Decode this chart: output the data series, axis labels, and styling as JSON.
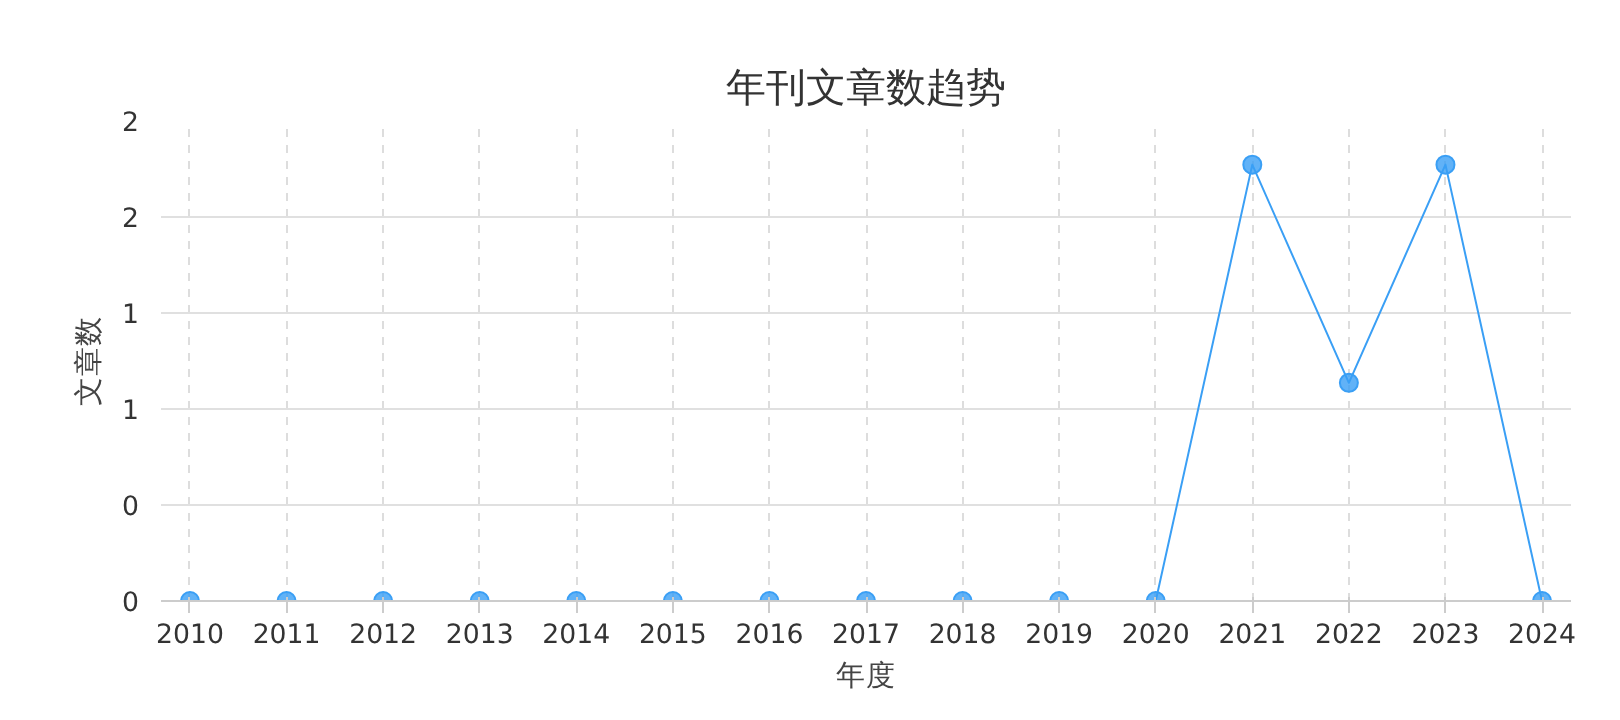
{
  "chart_data": {
    "type": "line",
    "title": "年刊文章数趋势",
    "xlabel": "年度",
    "ylabel": "文章数",
    "x": [
      2010,
      2011,
      2012,
      2013,
      2014,
      2015,
      2016,
      2017,
      2018,
      2019,
      2020,
      2021,
      2022,
      2023,
      2024
    ],
    "series": [
      {
        "color": "#3a9ff5",
        "values": [
          0,
          0,
          0,
          0,
          0,
          0,
          0,
          0,
          0,
          0,
          0,
          2,
          1,
          2,
          0
        ]
      }
    ],
    "xlim": [
      2009.7,
      2024.3
    ],
    "xticks": [
      2010,
      2011,
      2012,
      2013,
      2014,
      2015,
      2016,
      2017,
      2018,
      2019,
      2020,
      2021,
      2022,
      2023,
      2024
    ],
    "ylim": [
      0,
      2.2
    ],
    "yticks": [
      0,
      {
        "value": 0.44,
        "label": "0"
      },
      {
        "value": 0.88,
        "label": "1"
      },
      {
        "value": 1.32,
        "label": "1"
      },
      {
        "value": 1.76,
        "label": "2"
      },
      {
        "value": 2.2,
        "label": "2"
      }
    ],
    "grid": true,
    "marker": "circle",
    "line_style": "solid"
  }
}
